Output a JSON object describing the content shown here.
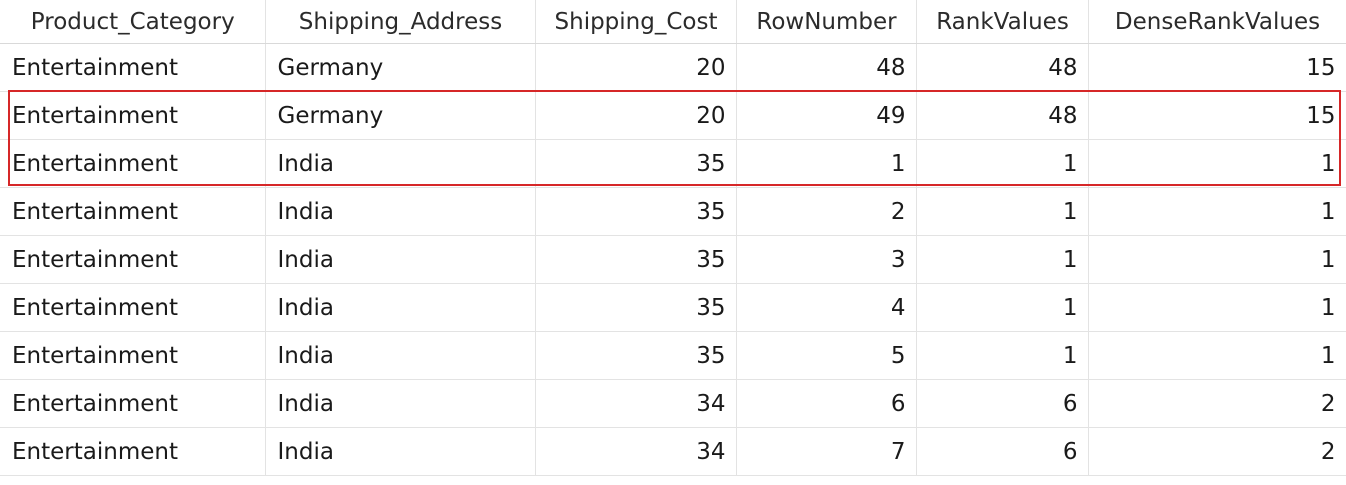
{
  "table": {
    "columns": [
      "Product_Category",
      "Shipping_Address",
      "Shipping_Cost",
      "RowNumber",
      "RankValues",
      "DenseRankValues"
    ],
    "rows": [
      [
        "Entertainment",
        "Germany",
        "20",
        "48",
        "48",
        "15"
      ],
      [
        "Entertainment",
        "Germany",
        "20",
        "49",
        "48",
        "15"
      ],
      [
        "Entertainment",
        "India",
        "35",
        "1",
        "1",
        "1"
      ],
      [
        "Entertainment",
        "India",
        "35",
        "2",
        "1",
        "1"
      ],
      [
        "Entertainment",
        "India",
        "35",
        "3",
        "1",
        "1"
      ],
      [
        "Entertainment",
        "India",
        "35",
        "4",
        "1",
        "1"
      ],
      [
        "Entertainment",
        "India",
        "35",
        "5",
        "1",
        "1"
      ],
      [
        "Entertainment",
        "India",
        "34",
        "6",
        "6",
        "2"
      ],
      [
        "Entertainment",
        "India",
        "34",
        "7",
        "6",
        "2"
      ]
    ],
    "highlight_color": "#d62728"
  }
}
